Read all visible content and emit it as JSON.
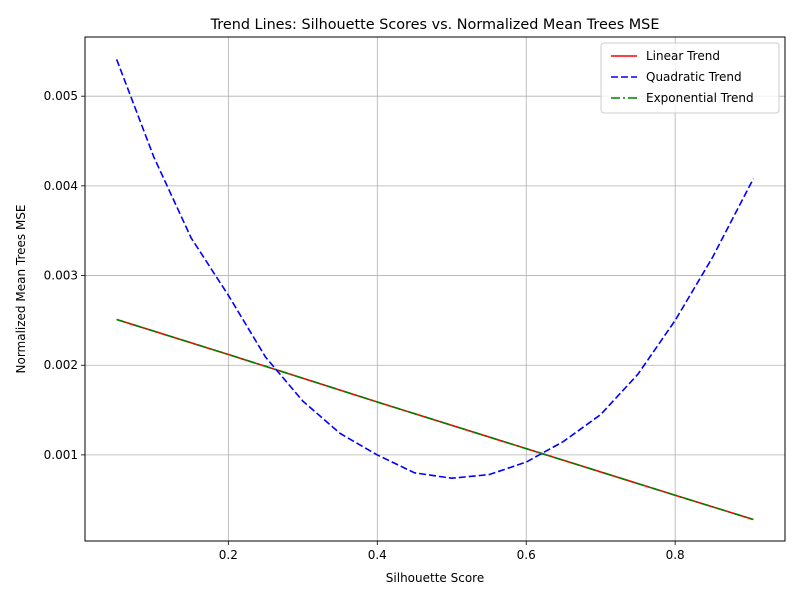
{
  "chart_data": {
    "type": "line",
    "title": "Trend Lines: Silhouette Scores vs. Normalized Mean Trees MSE",
    "xlabel": "Silhouette Score",
    "ylabel": "Normalized Mean Trees MSE",
    "xlim": [
      0.0075,
      0.9475
    ],
    "ylim": [
      4e-05,
      0.00566
    ],
    "x_ticks": [
      0.2,
      0.4,
      0.6,
      0.8
    ],
    "x_tick_labels": [
      "0.2",
      "0.4",
      "0.6",
      "0.8"
    ],
    "y_ticks": [
      0.001,
      0.002,
      0.003,
      0.004,
      0.005
    ],
    "y_tick_labels": [
      "0.001",
      "0.002",
      "0.003",
      "0.004",
      "0.005"
    ],
    "grid": true,
    "legend_position": "top-right",
    "x_range": [
      0.05,
      0.905
    ],
    "series": [
      {
        "name": "Linear Trend",
        "color": "#ff0000",
        "style": "solid",
        "x": [
          0.05,
          0.2,
          0.4,
          0.6,
          0.8,
          0.905
        ],
        "y": [
          0.00251,
          0.00212,
          0.00159,
          0.00107,
          0.00055,
          0.00028
        ]
      },
      {
        "name": "Quadratic Trend",
        "color": "#0000ff",
        "style": "dashed",
        "x": [
          0.05,
          0.1,
          0.15,
          0.2,
          0.25,
          0.3,
          0.35,
          0.4,
          0.45,
          0.5,
          0.55,
          0.6,
          0.65,
          0.7,
          0.75,
          0.8,
          0.85,
          0.905
        ],
        "y": [
          0.00541,
          0.00432,
          0.00342,
          0.00278,
          0.00209,
          0.0016,
          0.00124,
          0.001,
          0.0008,
          0.00074,
          0.00078,
          0.00092,
          0.00115,
          0.00145,
          0.0019,
          0.0025,
          0.0032,
          0.00408
        ]
      },
      {
        "name": "Exponential Trend",
        "color": "#008000",
        "style": "dashdot",
        "x": [
          0.05,
          0.2,
          0.4,
          0.6,
          0.8,
          0.905
        ],
        "y": [
          0.00251,
          0.00212,
          0.00159,
          0.00107,
          0.00055,
          0.00028
        ]
      }
    ]
  }
}
